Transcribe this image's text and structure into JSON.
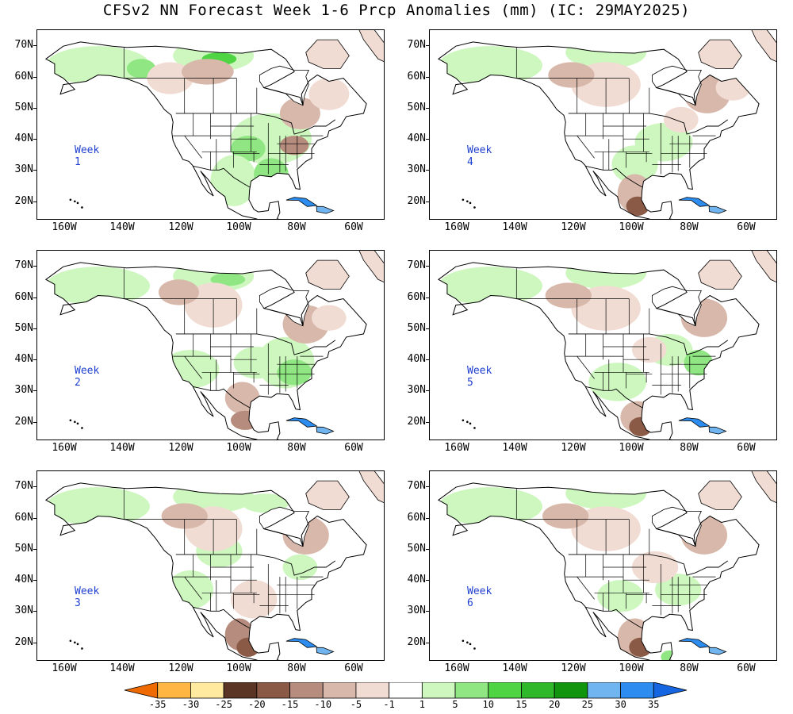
{
  "title": "CFSv2 NN Forecast Week 1-6 Prcp Anomalies (mm) (IC: 29MAY2025)",
  "panels": [
    {
      "label": "Week 1"
    },
    {
      "label": "Week 2"
    },
    {
      "label": "Week 3"
    },
    {
      "label": "Week 4"
    },
    {
      "label": "Week 5"
    },
    {
      "label": "Week 6"
    }
  ],
  "lat_labels": [
    "70N",
    "60N",
    "50N",
    "40N",
    "30N",
    "20N"
  ],
  "lon_labels": [
    "160W",
    "140W",
    "120W",
    "100W",
    "80W",
    "60W"
  ],
  "colorbar": {
    "labels": [
      "-35",
      "-30",
      "-25",
      "-20",
      "-15",
      "-10",
      "-5",
      "-1",
      "1",
      "5",
      "10",
      "15",
      "20",
      "25",
      "30",
      "35"
    ],
    "colors": [
      "#ef6a00",
      "#ffb642",
      "#ffeaa0",
      "#5a3525",
      "#8a5a47",
      "#b58c7d",
      "#d8b8aa",
      "#f1dcd3",
      "#ffffff",
      "#cdf7be",
      "#8fe682",
      "#4fd443",
      "#2eb82a",
      "#11950f",
      "#70b4f0",
      "#2c8cf0",
      "#1566e0"
    ]
  },
  "colors": {
    "land_outline": "#000000",
    "week_label": "#1f3fd0"
  }
}
